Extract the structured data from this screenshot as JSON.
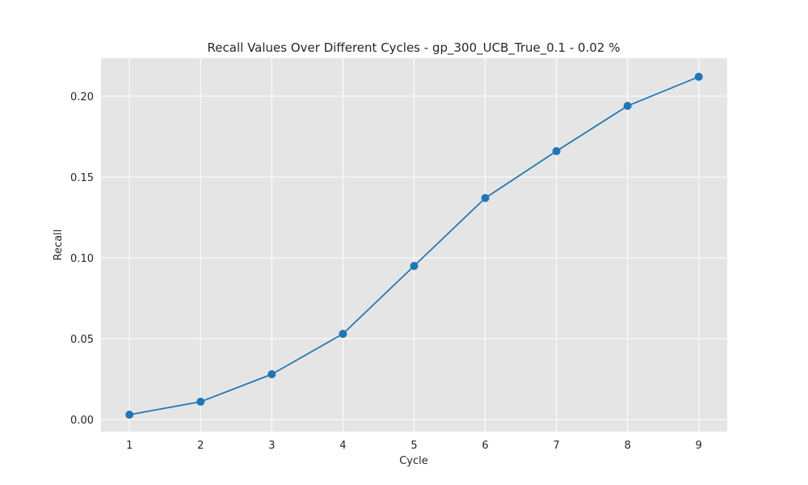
{
  "chart_data": {
    "type": "line",
    "title": "Recall Values Over Different Cycles - gp_300_UCB_True_0.1 - 0.02 %",
    "xlabel": "Cycle",
    "ylabel": "Recall",
    "x": [
      1,
      2,
      3,
      4,
      5,
      6,
      7,
      8,
      9
    ],
    "xticks": [
      "1",
      "2",
      "3",
      "4",
      "5",
      "6",
      "7",
      "8",
      "9"
    ],
    "yticks": [
      "0.00",
      "0.05",
      "0.10",
      "0.15",
      "0.20"
    ],
    "ytick_values": [
      0.0,
      0.05,
      0.1,
      0.15,
      0.2
    ],
    "xlim": [
      0.6,
      9.4
    ],
    "ylim": [
      -0.0075,
      0.2235
    ],
    "grid": true,
    "legend": "none",
    "series": [
      {
        "values": [
          0.003,
          0.011,
          0.028,
          0.053,
          0.095,
          0.137,
          0.166,
          0.194,
          0.212
        ],
        "color": "#1f77b4",
        "marker": "circle"
      }
    ],
    "colors": {
      "plot_background": "#e5e5e5",
      "grid": "#ffffff",
      "text": "#262626"
    }
  }
}
